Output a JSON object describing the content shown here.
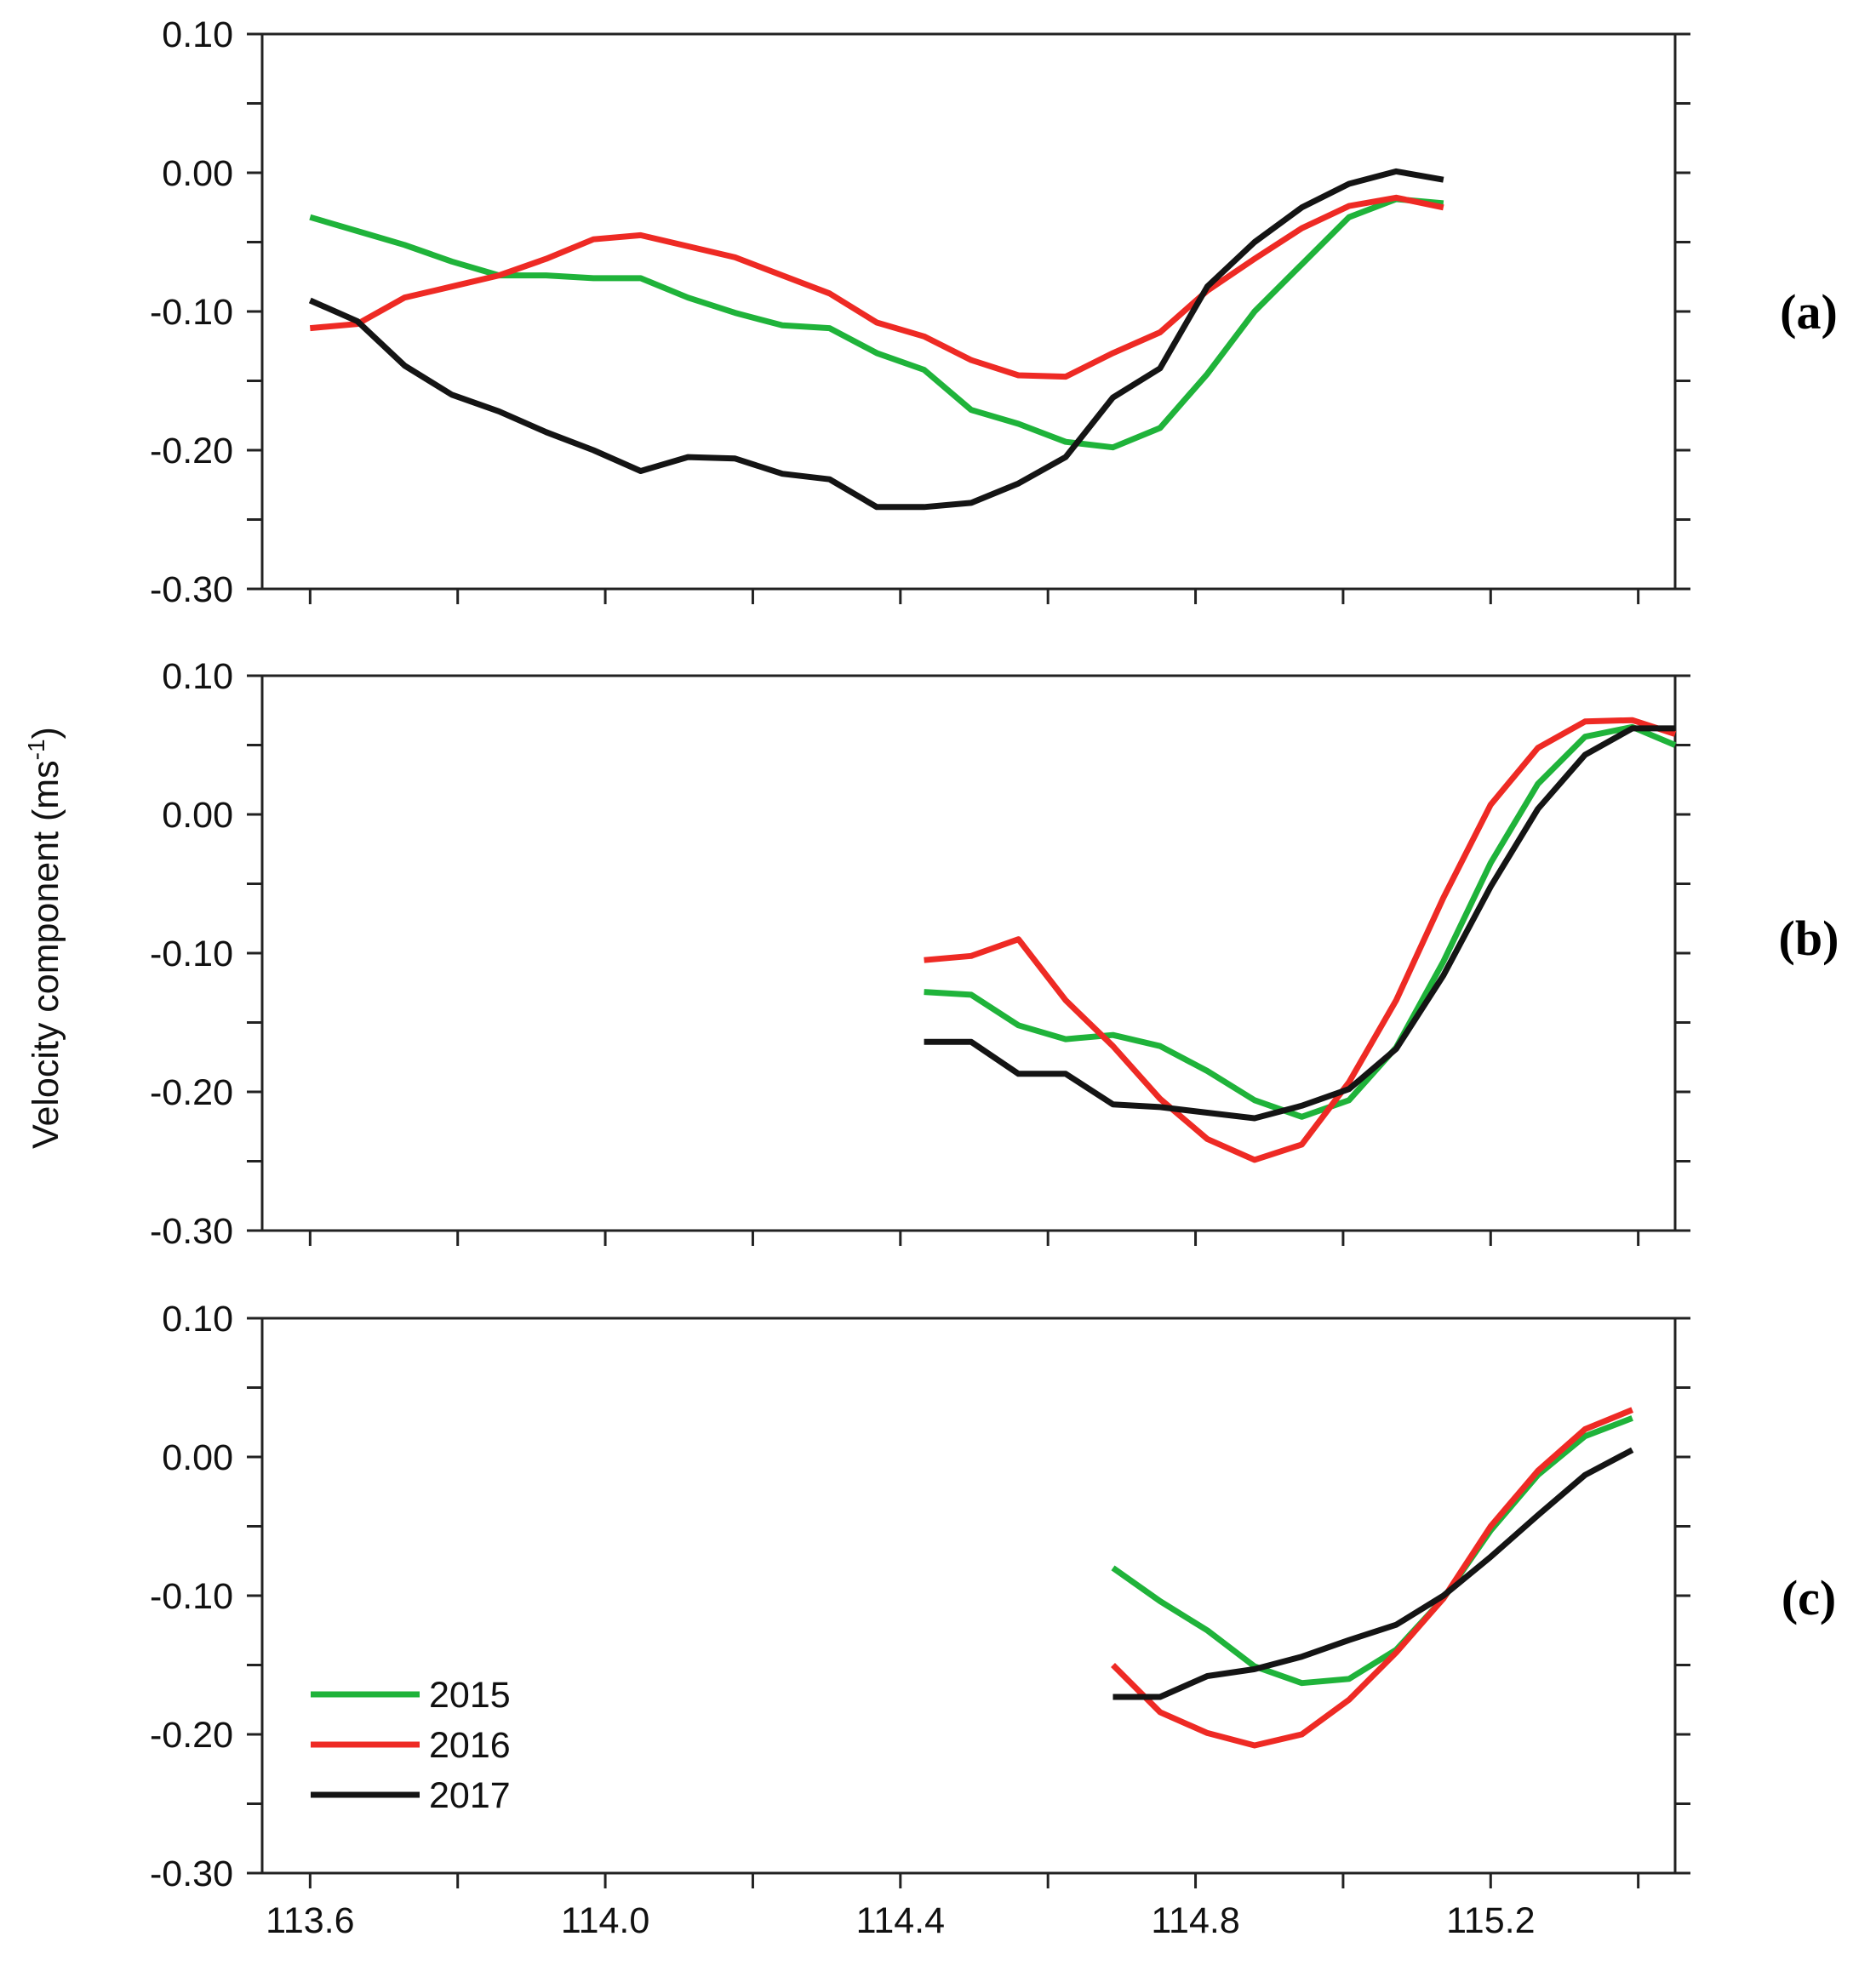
{
  "figure": {
    "ylabel": "Velocity component (ms",
    "ylabel_sup": "-1",
    "ylabel_close": ")",
    "legend": [
      {
        "label": "2015",
        "color": "#1fb33a"
      },
      {
        "label": "2016",
        "color": "#ee2a24"
      },
      {
        "label": "2017",
        "color": "#141414"
      }
    ]
  },
  "chart_data": [
    {
      "type": "line",
      "panel": "(a)",
      "xlim": [
        113.535,
        115.45
      ],
      "ylim": [
        -0.3,
        0.1
      ],
      "xticks": [
        113.6,
        114.0,
        114.4,
        114.8,
        115.2
      ],
      "xtick_labels": [
        "113.6",
        "114.0",
        "114.4",
        "114.8",
        "115.2"
      ],
      "xtick_labels_visible": false,
      "yticks": [
        0.1,
        0.0,
        -0.1,
        -0.2,
        -0.3
      ],
      "ytick_labels": [
        "0.10",
        "0.00",
        "-0.10",
        "-0.20",
        "-0.30"
      ],
      "series": [
        {
          "name": "2015",
          "color": "#1fb33a",
          "x": [
            113.6,
            113.664,
            113.728,
            113.792,
            113.856,
            113.92,
            113.984,
            114.048,
            114.112,
            114.176,
            114.24,
            114.304,
            114.368,
            114.432,
            114.496,
            114.56,
            114.624,
            114.688,
            114.752,
            114.816,
            114.88,
            114.944,
            115.008,
            115.072,
            115.136
          ],
          "y": [
            -0.032,
            -0.042,
            -0.052,
            -0.064,
            -0.074,
            -0.074,
            -0.076,
            -0.076,
            -0.09,
            -0.101,
            -0.11,
            -0.112,
            -0.13,
            -0.142,
            -0.171,
            -0.181,
            -0.194,
            -0.198,
            -0.184,
            -0.145,
            -0.1,
            -0.066,
            -0.032,
            -0.019,
            -0.022
          ]
        },
        {
          "name": "2016",
          "color": "#ee2a24",
          "x": [
            113.6,
            113.664,
            113.728,
            113.792,
            113.856,
            113.92,
            113.984,
            114.048,
            114.112,
            114.176,
            114.24,
            114.304,
            114.368,
            114.432,
            114.496,
            114.56,
            114.624,
            114.688,
            114.752,
            114.816,
            114.88,
            114.944,
            115.008,
            115.072,
            115.136
          ],
          "y": [
            -0.112,
            -0.109,
            -0.09,
            -0.082,
            -0.074,
            -0.062,
            -0.048,
            -0.045,
            -0.053,
            -0.061,
            -0.074,
            -0.087,
            -0.108,
            -0.118,
            -0.135,
            -0.146,
            -0.147,
            -0.13,
            -0.115,
            -0.085,
            -0.062,
            -0.04,
            -0.024,
            -0.018,
            -0.025
          ]
        },
        {
          "name": "2017",
          "color": "#141414",
          "x": [
            113.6,
            113.664,
            113.728,
            113.792,
            113.856,
            113.92,
            113.984,
            114.048,
            114.112,
            114.176,
            114.24,
            114.304,
            114.368,
            114.432,
            114.496,
            114.56,
            114.624,
            114.688,
            114.752,
            114.816,
            114.88,
            114.944,
            115.008,
            115.072,
            115.136
          ],
          "y": [
            -0.092,
            -0.107,
            -0.139,
            -0.16,
            -0.172,
            -0.187,
            -0.2,
            -0.215,
            -0.205,
            -0.206,
            -0.217,
            -0.221,
            -0.241,
            -0.241,
            -0.238,
            -0.224,
            -0.205,
            -0.162,
            -0.141,
            -0.082,
            -0.05,
            -0.025,
            -0.008,
            0.001,
            -0.005
          ]
        }
      ]
    },
    {
      "type": "line",
      "panel": "(b)",
      "xlim": [
        113.535,
        115.45
      ],
      "ylim": [
        -0.3,
        0.1
      ],
      "xticks": [
        113.6,
        114.0,
        114.4,
        114.8,
        115.2
      ],
      "xtick_labels": [
        "113.6",
        "114.0",
        "114.4",
        "114.8",
        "115.2"
      ],
      "xtick_labels_visible": false,
      "yticks": [
        0.1,
        0.0,
        -0.1,
        -0.2,
        -0.3
      ],
      "ytick_labels": [
        "0.10",
        "0.00",
        "-0.10",
        "-0.20",
        "-0.30"
      ],
      "series": [
        {
          "name": "2015",
          "color": "#1fb33a",
          "x": [
            114.432,
            114.496,
            114.56,
            114.624,
            114.688,
            114.752,
            114.816,
            114.88,
            114.944,
            115.008,
            115.072,
            115.136,
            115.2,
            115.264,
            115.328,
            115.392,
            115.45
          ],
          "y": [
            -0.128,
            -0.13,
            -0.152,
            -0.162,
            -0.159,
            -0.167,
            -0.185,
            -0.206,
            -0.218,
            -0.206,
            -0.168,
            -0.106,
            -0.035,
            0.022,
            0.056,
            0.063,
            0.05
          ]
        },
        {
          "name": "2016",
          "color": "#ee2a24",
          "x": [
            114.432,
            114.496,
            114.56,
            114.624,
            114.688,
            114.752,
            114.816,
            114.88,
            114.944,
            115.008,
            115.072,
            115.136,
            115.2,
            115.264,
            115.328,
            115.392,
            115.45
          ],
          "y": [
            -0.105,
            -0.102,
            -0.09,
            -0.134,
            -0.167,
            -0.205,
            -0.234,
            -0.249,
            -0.238,
            -0.193,
            -0.134,
            -0.06,
            0.007,
            0.048,
            0.067,
            0.068,
            0.058
          ]
        },
        {
          "name": "2017",
          "color": "#141414",
          "x": [
            114.432,
            114.496,
            114.56,
            114.624,
            114.688,
            114.752,
            114.816,
            114.88,
            114.944,
            115.008,
            115.072,
            115.136,
            115.2,
            115.264,
            115.328,
            115.392,
            115.45
          ],
          "y": [
            -0.164,
            -0.164,
            -0.187,
            -0.187,
            -0.209,
            -0.211,
            -0.215,
            -0.219,
            -0.21,
            -0.198,
            -0.169,
            -0.116,
            -0.052,
            0.004,
            0.043,
            0.062,
            0.062
          ]
        }
      ]
    },
    {
      "type": "line",
      "panel": "(c)",
      "xlim": [
        113.535,
        115.45
      ],
      "ylim": [
        -0.3,
        0.1
      ],
      "xticks": [
        113.6,
        114.0,
        114.4,
        114.8,
        115.2
      ],
      "xtick_labels": [
        "113.6",
        "114.0",
        "114.4",
        "114.8",
        "115.2"
      ],
      "xtick_labels_visible": true,
      "yticks": [
        0.1,
        0.0,
        -0.1,
        -0.2,
        -0.3
      ],
      "ytick_labels": [
        "0.10",
        "0.00",
        "-0.10",
        "-0.20",
        "-0.30"
      ],
      "series": [
        {
          "name": "2015",
          "color": "#1fb33a",
          "x": [
            114.688,
            114.752,
            114.816,
            114.88,
            114.944,
            115.008,
            115.072,
            115.136,
            115.2,
            115.264,
            115.328,
            115.392
          ],
          "y": [
            -0.08,
            -0.104,
            -0.125,
            -0.151,
            -0.163,
            -0.16,
            -0.139,
            -0.102,
            -0.053,
            -0.013,
            0.015,
            0.028
          ]
        },
        {
          "name": "2016",
          "color": "#ee2a24",
          "x": [
            114.688,
            114.752,
            114.816,
            114.88,
            114.944,
            115.008,
            115.072,
            115.136,
            115.2,
            115.264,
            115.328,
            115.392
          ],
          "y": [
            -0.15,
            -0.184,
            -0.199,
            -0.208,
            -0.2,
            -0.175,
            -0.141,
            -0.102,
            -0.05,
            -0.01,
            0.02,
            0.034
          ]
        },
        {
          "name": "2017",
          "color": "#141414",
          "x": [
            114.688,
            114.752,
            114.816,
            114.88,
            114.944,
            115.008,
            115.072,
            115.136,
            115.2,
            115.264,
            115.328,
            115.392
          ],
          "y": [
            -0.173,
            -0.173,
            -0.158,
            -0.153,
            -0.144,
            -0.132,
            -0.121,
            -0.1,
            -0.072,
            -0.042,
            -0.013,
            0.005
          ]
        }
      ]
    }
  ]
}
